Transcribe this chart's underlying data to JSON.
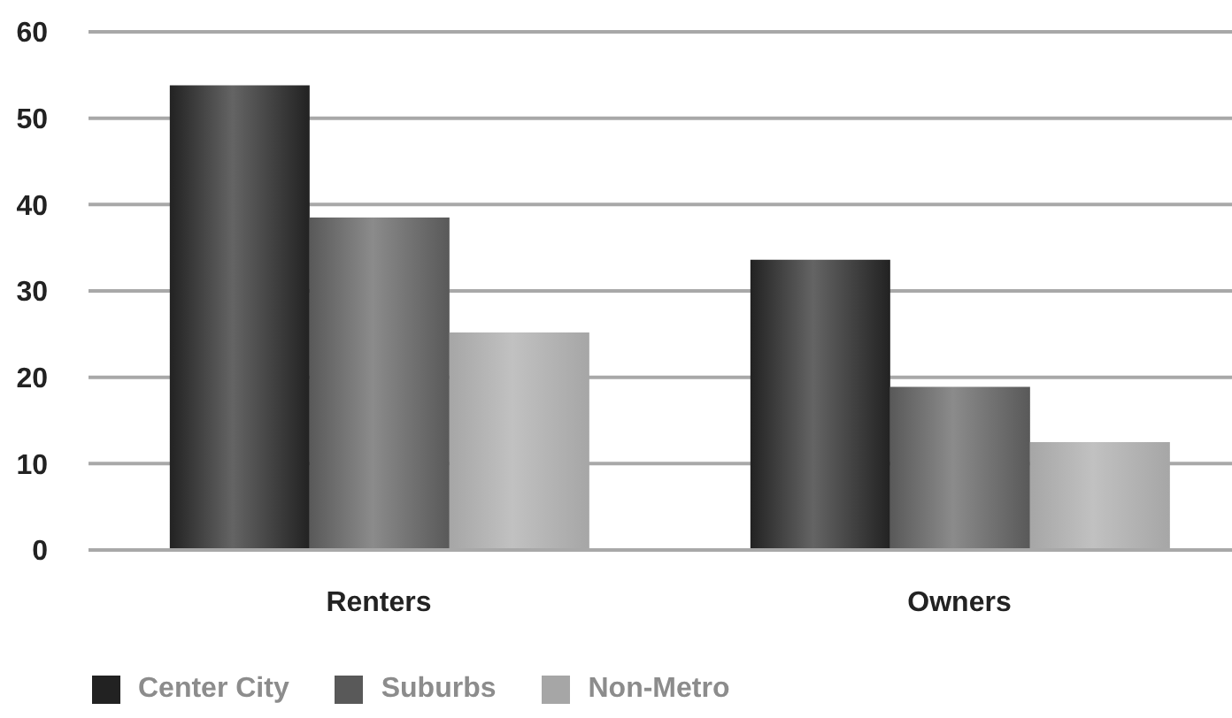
{
  "chart_data": {
    "type": "bar",
    "categories": [
      "Renters",
      "Owners"
    ],
    "series": [
      {
        "name": "Center City",
        "color": "#222222",
        "values": [
          53.8,
          33.6
        ]
      },
      {
        "name": "Suburbs",
        "color": "#595959",
        "values": [
          38.5,
          18.9
        ]
      },
      {
        "name": "Non-Metro",
        "color": "#a6a6a6",
        "values": [
          25.2,
          12.5
        ]
      }
    ],
    "ylim": [
      0,
      60
    ],
    "yticks": [
      0,
      10,
      20,
      30,
      40,
      50,
      60
    ],
    "grid": "y",
    "legend": "bottom left"
  }
}
